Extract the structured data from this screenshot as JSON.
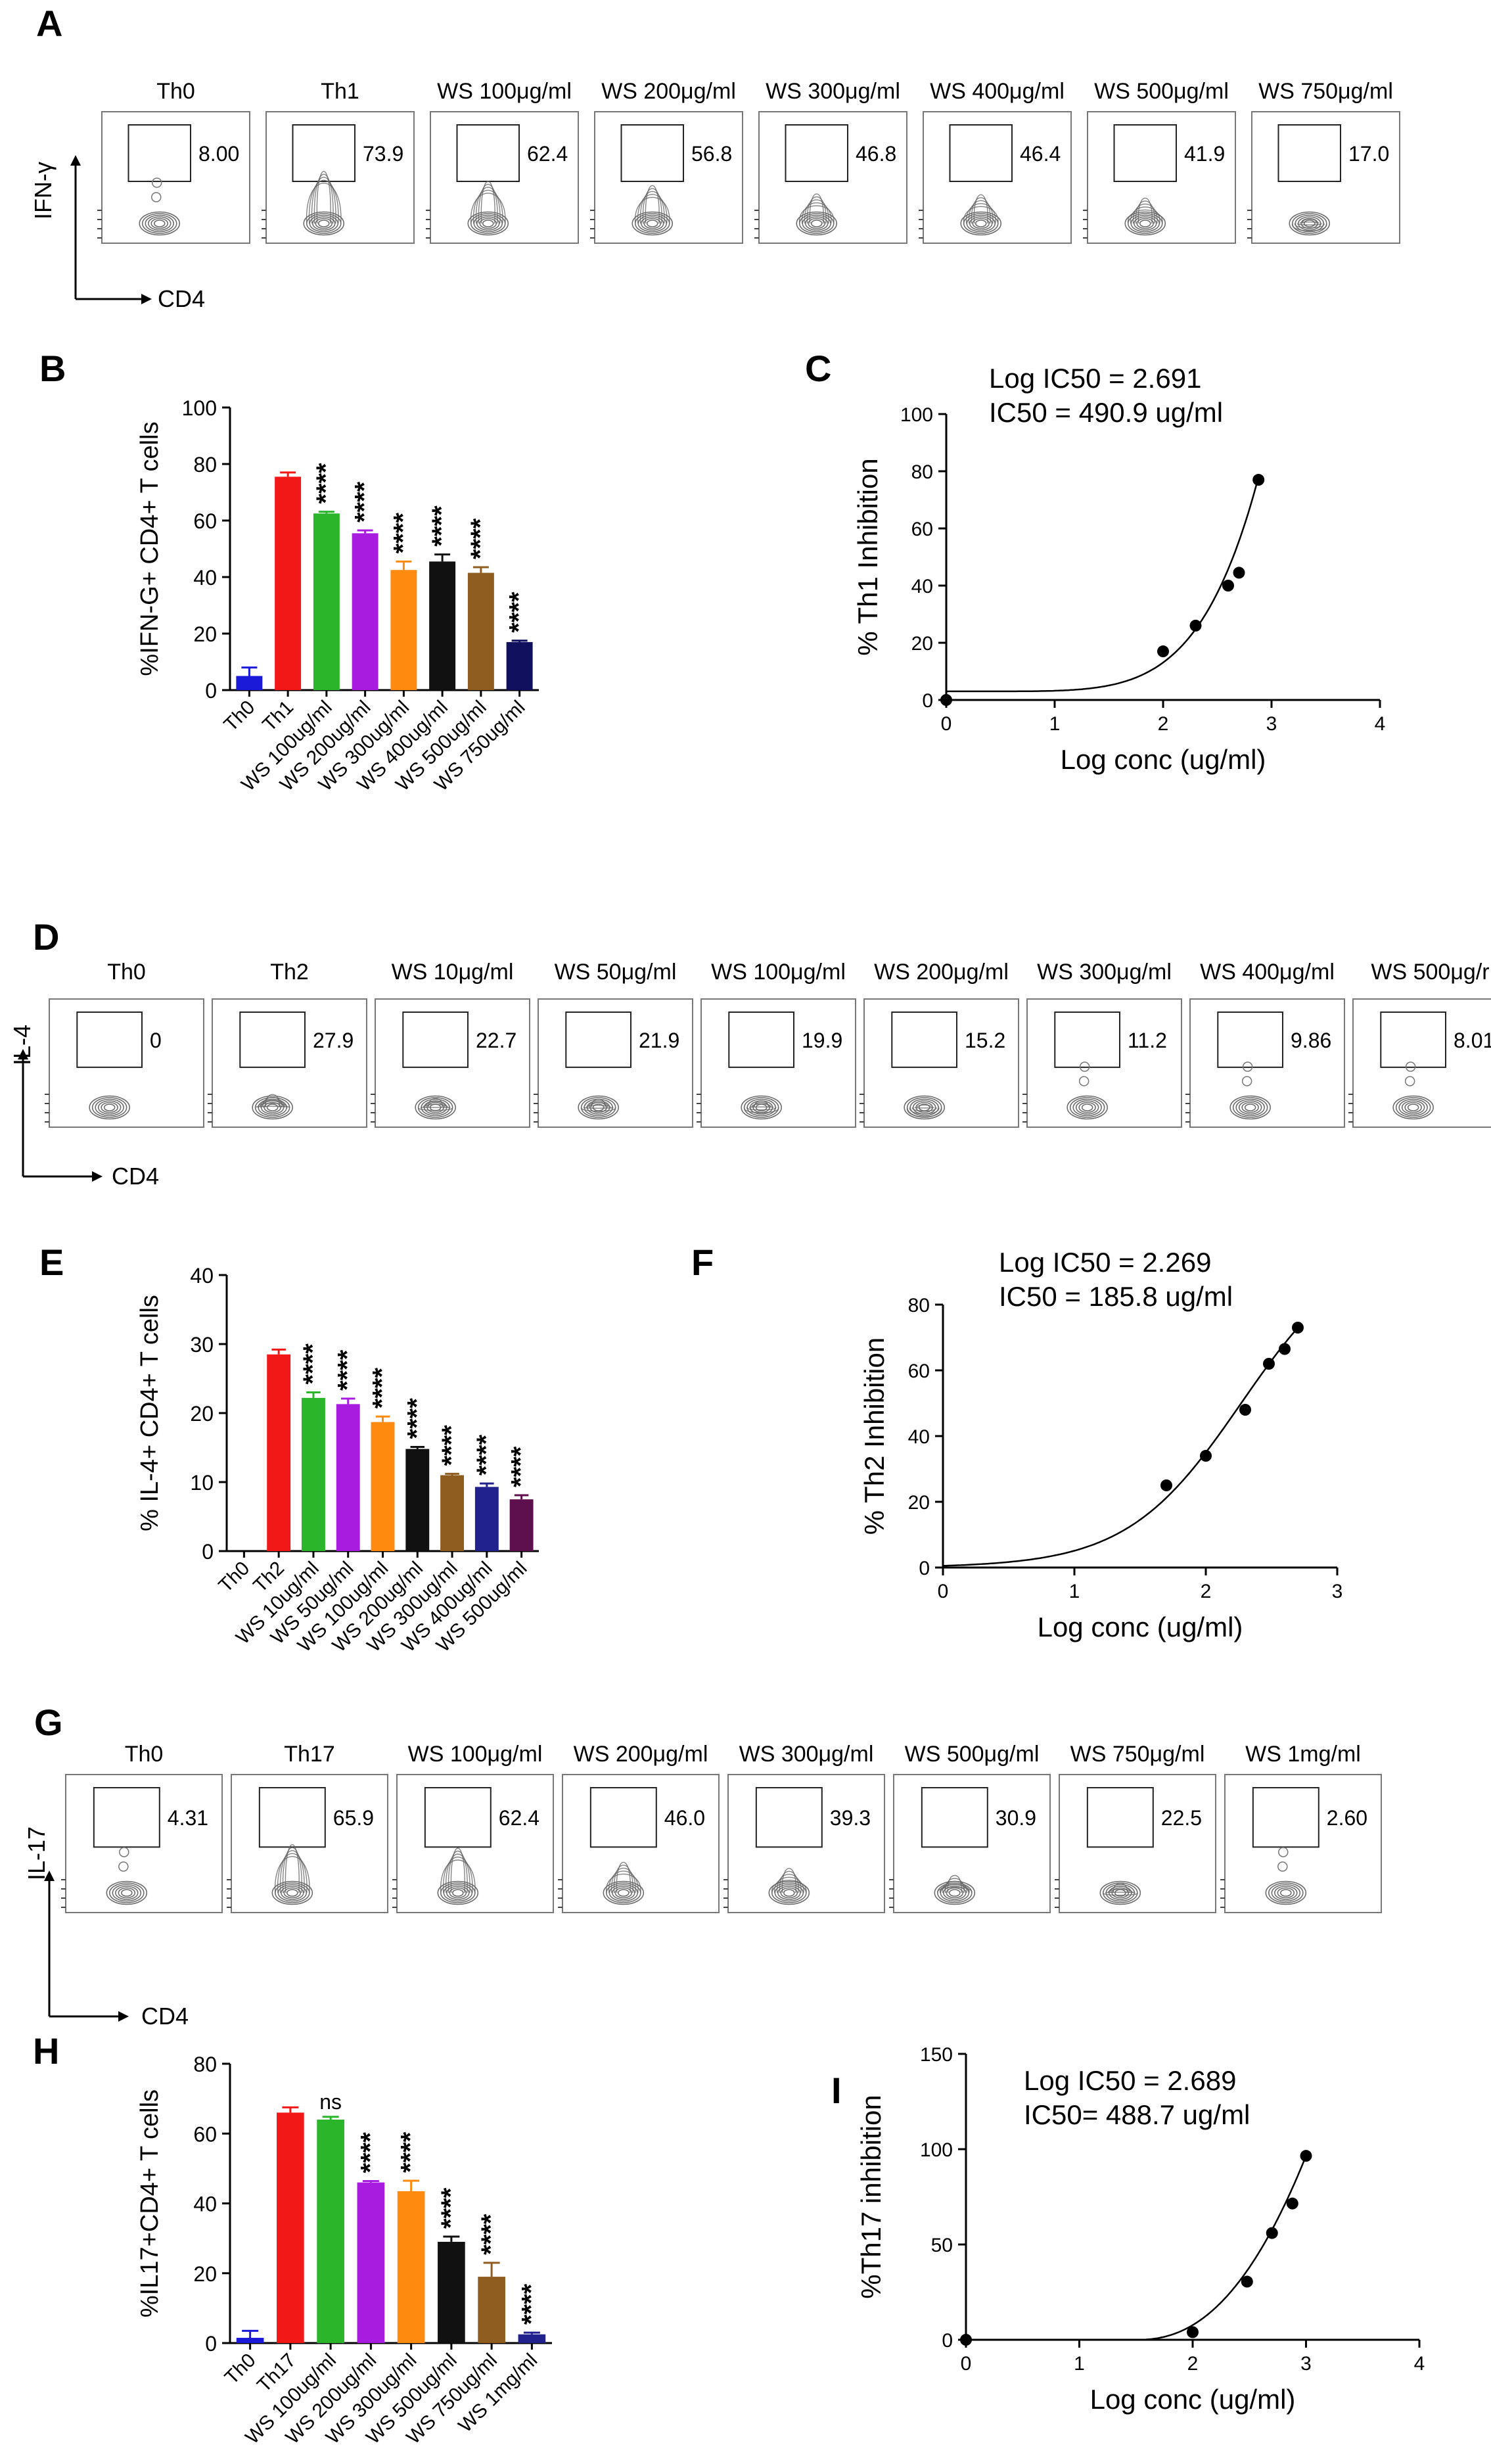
{
  "figure": {
    "panels": [
      {
        "letter": "A",
        "type": "flow_row",
        "yaxis": "IFN-γ",
        "xaxis": "CD4",
        "plots": [
          {
            "label": "Th0",
            "value": "8.00",
            "level": 0.08
          },
          {
            "label": "Th1",
            "value": "73.9",
            "level": 0.74
          },
          {
            "label": "WS 100μg/ml",
            "value": "62.4",
            "level": 0.62
          },
          {
            "label": "WS 200μg/ml",
            "value": "56.8",
            "level": 0.57
          },
          {
            "label": "WS 300μg/ml",
            "value": "46.8",
            "level": 0.47
          },
          {
            "label": "WS 400μg/ml",
            "value": "46.4",
            "level": 0.46
          },
          {
            "label": "WS 500μg/ml",
            "value": "41.9",
            "level": 0.42
          },
          {
            "label": "WS 750μg/ml",
            "value": "17.0",
            "level": 0.17
          }
        ]
      },
      {
        "letter": "D",
        "type": "flow_row",
        "yaxis": "IL-4",
        "xaxis": "CD4",
        "plots": [
          {
            "label": "Th0",
            "value": "0",
            "level": 0.0
          },
          {
            "label": "Th2",
            "value": "27.9",
            "level": 0.28
          },
          {
            "label": "WS 10μg/ml",
            "value": "22.7",
            "level": 0.23
          },
          {
            "label": "WS 50μg/ml",
            "value": "21.9",
            "level": 0.22
          },
          {
            "label": "WS 100μg/ml",
            "value": "19.9",
            "level": 0.2
          },
          {
            "label": "WS 200μg/ml",
            "value": "15.2",
            "level": 0.15
          },
          {
            "label": "WS 300μg/ml",
            "value": "11.2",
            "level": 0.11
          },
          {
            "label": "WS 400μg/ml",
            "value": "9.86",
            "level": 0.1
          },
          {
            "label": "WS 500μg/r",
            "value": "8.01",
            "level": 0.08
          }
        ]
      },
      {
        "letter": "G",
        "type": "flow_row",
        "yaxis": "IL-17",
        "xaxis": "CD4",
        "plots": [
          {
            "label": "Th0",
            "value": "4.31",
            "level": 0.04
          },
          {
            "label": "Th17",
            "value": "65.9",
            "level": 0.66
          },
          {
            "label": "WS 100μg/ml",
            "value": "62.4",
            "level": 0.62
          },
          {
            "label": "WS 200μg/ml",
            "value": "46.0",
            "level": 0.46
          },
          {
            "label": "WS 300μg/ml",
            "value": "39.3",
            "level": 0.39
          },
          {
            "label": "WS 500μg/ml",
            "value": "30.9",
            "level": 0.31
          },
          {
            "label": "WS 750μg/ml",
            "value": "22.5",
            "level": 0.22
          },
          {
            "label": "WS 1mg/ml",
            "value": "2.60",
            "level": 0.03
          }
        ]
      }
    ]
  },
  "chart_data": [
    {
      "letter": "B",
      "type": "bar",
      "ylabel": "%IFN-G+ CD4+ T cells",
      "ylim": [
        0,
        100
      ],
      "yticks": [
        0,
        20,
        40,
        60,
        80,
        100
      ],
      "categories": [
        "Th0",
        "Th1",
        "WS 100ug/ml",
        "WS 200ug/ml",
        "WS 300ug/ml",
        "WS 400ug/ml",
        "WS 500ug/ml",
        "WS 750ug/ml"
      ],
      "values": [
        5,
        75.5,
        62.5,
        55.5,
        42.5,
        45.5,
        41.5,
        17
      ],
      "errors": [
        3,
        1.5,
        0.6,
        1,
        3,
        2.5,
        2,
        0.5
      ],
      "colors": [
        "#1a1ad8",
        "#f21818",
        "#2ab52a",
        "#a81ce0",
        "#ff8a10",
        "#111111",
        "#8f5d20",
        "#10105f"
      ],
      "significance": [
        "",
        "",
        "****",
        "****",
        "****",
        "****",
        "****",
        "****"
      ]
    },
    {
      "letter": "C",
      "type": "scatter",
      "title_lines": [
        "Log IC50 = 2.691",
        "IC50 = 490.9 ug/ml"
      ],
      "xlabel": "Log conc (ug/ml)",
      "ylabel": "% Th1 Inhibition",
      "xlim": [
        0,
        4
      ],
      "ylim": [
        0,
        100
      ],
      "xticks": [
        0,
        1,
        2,
        3,
        4
      ],
      "yticks": [
        0,
        20,
        40,
        60,
        80,
        100
      ],
      "x": [
        0,
        2.0,
        2.3,
        2.6,
        2.7,
        2.88
      ],
      "y": [
        0,
        17,
        26,
        40,
        44.5,
        77
      ],
      "curve": {
        "bottom": 3,
        "top": 100,
        "logic50": 2.691,
        "hill": 2.5,
        "xmin": 0,
        "xmax": 2.88
      }
    },
    {
      "letter": "E",
      "type": "bar",
      "ylabel": "% IL-4+ CD4+ T cells",
      "ylim": [
        0,
        40
      ],
      "yticks": [
        0,
        10,
        20,
        30,
        40
      ],
      "categories": [
        "Th0",
        "Th2",
        "WS 10ug/ml",
        "WS 50ug/ml",
        "WS 100ug/ml",
        "WS 200ug/ml",
        "WS 300ug/ml",
        "WS 400ug/ml",
        "WS 500ug/ml"
      ],
      "values": [
        0,
        28.5,
        22.2,
        21.3,
        18.7,
        14.8,
        11,
        9.3,
        7.5
      ],
      "errors": [
        0,
        0.7,
        0.8,
        0.8,
        0.8,
        0.3,
        0.2,
        0.5,
        0.6
      ],
      "colors": [
        "#1a1ad8",
        "#f21818",
        "#2ab52a",
        "#a81ce0",
        "#ff8a10",
        "#111111",
        "#8f5d20",
        "#22228f",
        "#5e0f4e"
      ],
      "significance": [
        "",
        "",
        "****",
        "****",
        "****",
        "****",
        "****",
        "****",
        "****"
      ]
    },
    {
      "letter": "F",
      "type": "scatter",
      "title_lines": [
        "Log IC50 =  2.269",
        "IC50 = 185.8 ug/ml"
      ],
      "xlabel": "Log conc (ug/ml)",
      "ylabel": "% Th2 Inhibition",
      "xlim": [
        0,
        3
      ],
      "ylim": [
        0,
        80
      ],
      "xticks": [
        0,
        1,
        2,
        3
      ],
      "yticks": [
        0,
        20,
        40,
        60,
        80
      ],
      "x": [
        1.7,
        2.0,
        2.3,
        2.48,
        2.6,
        2.7
      ],
      "y": [
        25,
        34,
        48,
        62,
        66.5,
        73
      ],
      "curve": {
        "bottom": 0,
        "top": 100,
        "logic50": 2.269,
        "hill": 1.0,
        "xmin": 0,
        "xmax": 2.7
      }
    },
    {
      "letter": "H",
      "type": "bar",
      "ylabel": "%IL17+CD4+ T cells",
      "ylim": [
        0,
        80
      ],
      "yticks": [
        0,
        20,
        40,
        60,
        80
      ],
      "categories": [
        "Th0",
        "Th17",
        "WS 100ug/ml",
        "WS 200ug/ml",
        "WS 300ug/ml",
        "WS 500ug/ml",
        "WS 750ug/ml",
        "WS 1mg/ml"
      ],
      "values": [
        1.5,
        66,
        64,
        46,
        43.5,
        29,
        19,
        2.5
      ],
      "errors": [
        2,
        1.5,
        0.8,
        0.4,
        3,
        1.5,
        4,
        0.5
      ],
      "colors": [
        "#1a1ad8",
        "#f21818",
        "#2ab52a",
        "#a81ce0",
        "#ff8a10",
        "#111111",
        "#8f5d20",
        "#22228f"
      ],
      "significance": [
        "",
        "",
        "ns",
        "****",
        "****",
        "****",
        "****",
        "****"
      ]
    },
    {
      "letter": "I",
      "type": "scatter",
      "title_lines": [
        "Log IC50 = 2.689",
        "IC50= 488.7 ug/ml"
      ],
      "xlabel": "Log conc (ug/ml)",
      "ylabel": "%Th17 inhibition",
      "xlim": [
        0,
        4
      ],
      "ylim": [
        0,
        150
      ],
      "xticks": [
        0,
        1,
        2,
        3,
        4
      ],
      "yticks": [
        0,
        50,
        100,
        150
      ],
      "x": [
        0,
        2.0,
        2.48,
        2.7,
        2.88,
        3.0
      ],
      "y": [
        0,
        4,
        30.5,
        56,
        71.5,
        96.5
      ],
      "curve": {
        "bottom": 0,
        "top": 100,
        "logic50": 2.689,
        "hill": 1.8,
        "xmin": 1.5,
        "xmax": 3.0,
        "linear_near_top": true
      }
    }
  ]
}
